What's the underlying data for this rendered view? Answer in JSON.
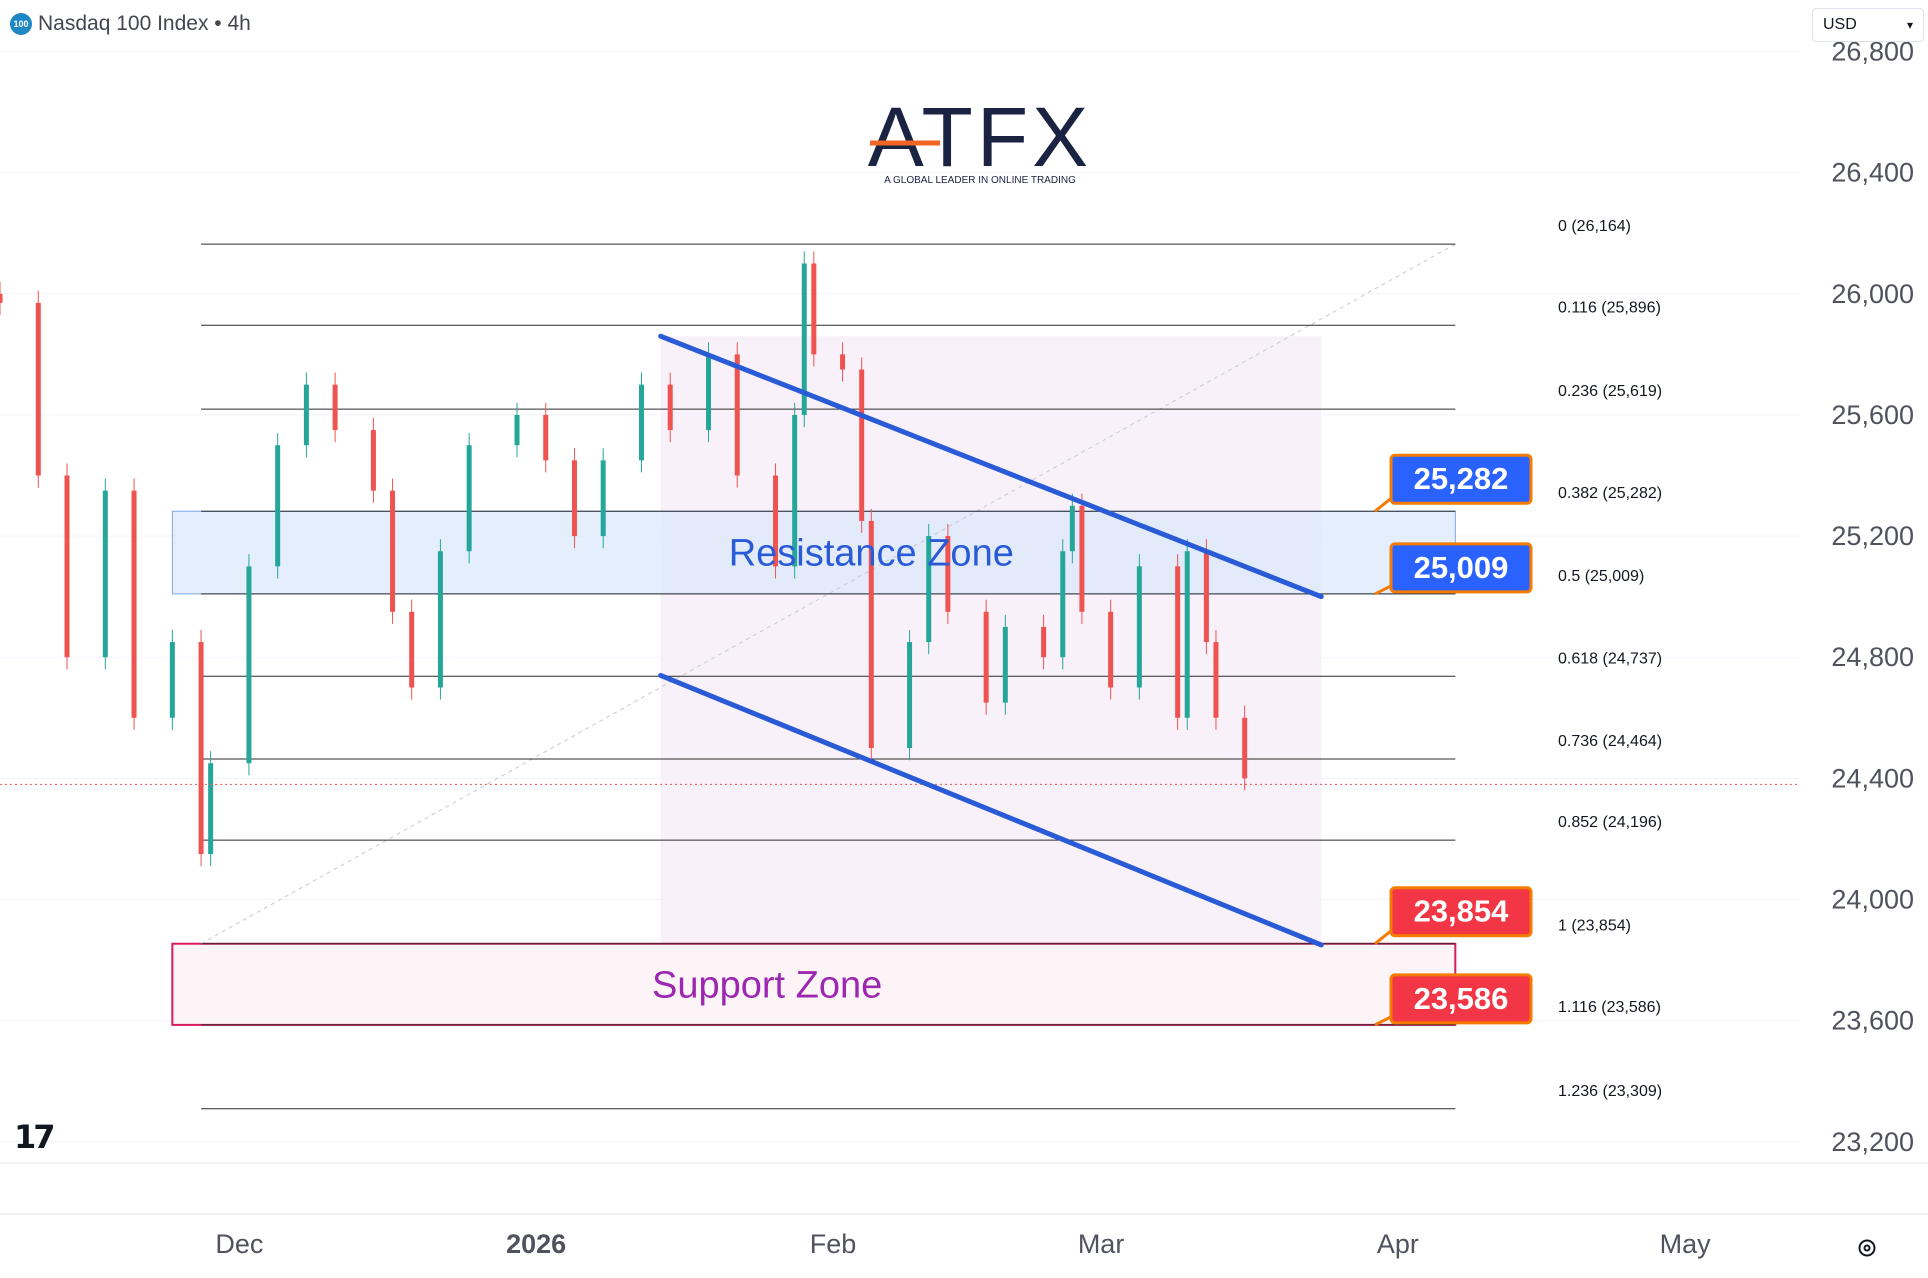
{
  "header": {
    "symbol_badge": "100",
    "title": "Nasdaq 100 Index • 4h"
  },
  "currency": {
    "label": "USD",
    "icon": "chevron-down-icon"
  },
  "logo": {
    "brand": "ATFX",
    "tagline": "A GLOBAL LEADER IN ONLINE TRADING"
  },
  "colors": {
    "up": "#26a69a",
    "down": "#ef5350",
    "channel": "#2a5bd7",
    "resistance_fill": "#dbe8fb",
    "support_border": "#d81b60",
    "support_text": "#9c27b0",
    "resistance_text": "#2a5bd7",
    "label_blue": "#2962ff",
    "label_red": "#f23645"
  },
  "chart_data": {
    "type": "candlestick",
    "title": "Nasdaq 100 Index • 4h",
    "y_axis": {
      "ticks": [
        "26,800",
        "26,400",
        "26,000",
        "25,600",
        "25,200",
        "24,800",
        "24,400",
        "24,000",
        "23,600",
        "23,200"
      ],
      "tick_values": [
        26800,
        26400,
        26000,
        25600,
        25200,
        24800,
        24400,
        24000,
        23600,
        23200
      ],
      "ylim": [
        23130,
        26970
      ]
    },
    "x_axis": {
      "labels": [
        "Dec",
        "2026",
        "Feb",
        "Mar",
        "Apr",
        "May"
      ],
      "dates": [
        "2025-12-01",
        "2026-01-01",
        "2026-02-01",
        "2026-03-01",
        "2026-04-01",
        "2026-05-01"
      ],
      "xlim": [
        "2025-11-06",
        "2026-05-13"
      ]
    },
    "candles": [
      {
        "date": "2025-11-06",
        "close": 25970
      },
      {
        "date": "2025-11-10",
        "close": 25400
      },
      {
        "date": "2025-11-13",
        "close": 24800
      },
      {
        "date": "2025-11-17",
        "close": 25350
      },
      {
        "date": "2025-11-20",
        "close": 24600
      },
      {
        "date": "2025-11-24",
        "close": 24850
      },
      {
        "date": "2025-11-27",
        "close": 24150
      },
      {
        "date": "2025-11-28",
        "close": 24450
      },
      {
        "date": "2025-12-02",
        "close": 25100
      },
      {
        "date": "2025-12-05",
        "close": 25500
      },
      {
        "date": "2025-12-08",
        "close": 25700
      },
      {
        "date": "2025-12-11",
        "close": 25550
      },
      {
        "date": "2025-12-15",
        "close": 25350
      },
      {
        "date": "2025-12-17",
        "close": 24950
      },
      {
        "date": "2025-12-19",
        "close": 24700
      },
      {
        "date": "2025-12-22",
        "close": 25150
      },
      {
        "date": "2025-12-25",
        "close": 25500
      },
      {
        "date": "2025-12-30",
        "close": 25600
      },
      {
        "date": "2026-01-02",
        "close": 25450
      },
      {
        "date": "2026-01-05",
        "close": 25200
      },
      {
        "date": "2026-01-08",
        "close": 25450
      },
      {
        "date": "2026-01-12",
        "close": 25700
      },
      {
        "date": "2026-01-15",
        "close": 25550
      },
      {
        "date": "2026-01-19",
        "close": 25800
      },
      {
        "date": "2026-01-22",
        "close": 25400
      },
      {
        "date": "2026-01-26",
        "close": 25100
      },
      {
        "date": "2026-01-28",
        "close": 25600
      },
      {
        "date": "2026-01-29",
        "close": 26100
      },
      {
        "date": "2026-01-30",
        "close": 25800
      },
      {
        "date": "2026-02-02",
        "close": 25750
      },
      {
        "date": "2026-02-04",
        "close": 25250
      },
      {
        "date": "2026-02-05",
        "close": 24500
      },
      {
        "date": "2026-02-09",
        "close": 24850
      },
      {
        "date": "2026-02-11",
        "close": 25200
      },
      {
        "date": "2026-02-13",
        "close": 24950
      },
      {
        "date": "2026-02-17",
        "close": 24650
      },
      {
        "date": "2026-02-19",
        "close": 24900
      },
      {
        "date": "2026-02-23",
        "close": 24800
      },
      {
        "date": "2026-02-25",
        "close": 25150
      },
      {
        "date": "2026-02-26",
        "close": 25300
      },
      {
        "date": "2026-02-27",
        "close": 24950
      },
      {
        "date": "2026-03-02",
        "close": 24700
      },
      {
        "date": "2026-03-05",
        "close": 25100
      },
      {
        "date": "2026-03-09",
        "close": 24600
      },
      {
        "date": "2026-03-10",
        "close": 25150
      },
      {
        "date": "2026-03-12",
        "close": 24850
      },
      {
        "date": "2026-03-13",
        "close": 24600
      },
      {
        "date": "2026-03-16",
        "close": 24400
      }
    ],
    "last_price": 24380,
    "fibonacci": [
      {
        "label": "0 (26,164)",
        "value": 26164
      },
      {
        "label": "0.116 (25,896)",
        "value": 25896
      },
      {
        "label": "0.236 (25,619)",
        "value": 25619
      },
      {
        "label": "0.382 (25,282)",
        "value": 25282
      },
      {
        "label": "0.5 (25,009)",
        "value": 25009
      },
      {
        "label": "0.618 (24,737)",
        "value": 24737
      },
      {
        "label": "0.736 (24,464)",
        "value": 24464
      },
      {
        "label": "0.852 (24,196)",
        "value": 24196
      },
      {
        "label": "1 (23,854)",
        "value": 23854
      },
      {
        "label": "1.116 (23,586)",
        "value": 23586
      },
      {
        "label": "1.236 (23,309)",
        "value": 23309
      }
    ],
    "zones": [
      {
        "name": "Resistance Zone",
        "from": 25009,
        "to": 25282
      },
      {
        "name": "Support Zone",
        "from": 23586,
        "to": 23854
      }
    ],
    "channel": {
      "upper": [
        {
          "date": "2026-01-14",
          "value": 25860
        },
        {
          "date": "2026-03-24",
          "value": 25000
        }
      ],
      "lower": [
        {
          "date": "2026-01-14",
          "value": 24740
        },
        {
          "date": "2026-03-24",
          "value": 23850
        }
      ]
    },
    "price_labels": [
      {
        "text": "25,282",
        "value": 25282,
        "color": "blue"
      },
      {
        "text": "25,009",
        "value": 25009,
        "color": "blue"
      },
      {
        "text": "23,854",
        "value": 23854,
        "color": "red"
      },
      {
        "text": "23,586",
        "value": 23586,
        "color": "red"
      }
    ]
  }
}
